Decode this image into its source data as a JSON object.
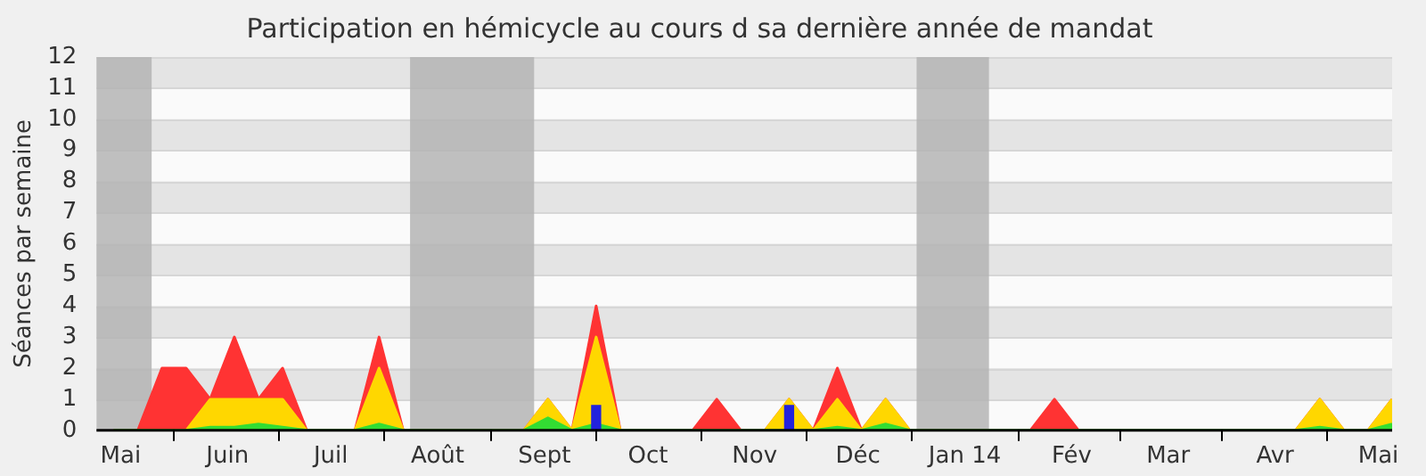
{
  "chart_data": {
    "type": "area",
    "title": "Participation en hémicycle au cours d sa dernière année de mandat",
    "ylabel": "Séances par semaine",
    "x": [
      "2013-04-29",
      "2013-05-06",
      "2013-05-13",
      "2013-05-20",
      "2013-05-27",
      "2013-06-03",
      "2013-06-10",
      "2013-06-17",
      "2013-06-24",
      "2013-07-01",
      "2013-07-08",
      "2013-07-15",
      "2013-07-22",
      "2013-07-29",
      "2013-08-05",
      "2013-08-12",
      "2013-08-19",
      "2013-08-26",
      "2013-09-02",
      "2013-09-09",
      "2013-09-16",
      "2013-09-23",
      "2013-09-30",
      "2013-10-07",
      "2013-10-14",
      "2013-10-21",
      "2013-10-28",
      "2013-11-04",
      "2013-11-11",
      "2013-11-18",
      "2013-11-25",
      "2013-12-02",
      "2013-12-09",
      "2013-12-16",
      "2013-12-23",
      "2013-12-30",
      "2014-01-06",
      "2014-01-13",
      "2014-01-20",
      "2014-01-27",
      "2014-02-03",
      "2014-02-10",
      "2014-02-17",
      "2014-02-24",
      "2014-03-03",
      "2014-03-10",
      "2014-03-17",
      "2014-03-24",
      "2014-03-31",
      "2014-04-07",
      "2014-04-14",
      "2014-04-21",
      "2014-04-28",
      "2014-05-05"
    ],
    "series": [
      {
        "color": "#ff3333",
        "values": [
          0,
          0,
          2,
          2,
          1,
          3,
          1,
          2,
          0,
          0,
          0,
          3,
          0,
          0,
          0,
          0,
          0,
          0,
          1,
          0,
          4,
          0,
          0,
          0,
          0,
          1,
          0,
          0,
          1,
          0,
          2,
          0,
          1,
          0,
          0,
          0,
          0,
          0,
          0,
          1,
          0,
          0,
          0,
          0,
          0,
          0,
          0,
          0,
          0,
          0,
          1,
          0,
          0,
          1
        ]
      },
      {
        "color": "#ffd700",
        "values": [
          0,
          0,
          0,
          0,
          1,
          1,
          1,
          1,
          0,
          0,
          0,
          2,
          0,
          0,
          0,
          0,
          0,
          0,
          1,
          0,
          3,
          0,
          0,
          0,
          0,
          0,
          0,
          0,
          1,
          0,
          1,
          0,
          1,
          0,
          0,
          0,
          0,
          0,
          0,
          0,
          0,
          0,
          0,
          0,
          0,
          0,
          0,
          0,
          0,
          0,
          1,
          0,
          0,
          1
        ]
      },
      {
        "color": "#33dd33",
        "values": [
          0,
          0,
          0,
          0,
          0.1,
          0.1,
          0.2,
          0.1,
          0,
          0,
          0,
          0.2,
          0,
          0,
          0,
          0,
          0,
          0,
          0.4,
          0,
          0.2,
          0,
          0,
          0,
          0,
          0,
          0,
          0,
          0,
          0,
          0.1,
          0,
          0.2,
          0,
          0,
          0,
          0,
          0,
          0,
          0,
          0,
          0,
          0,
          0,
          0,
          0,
          0,
          0,
          0,
          0,
          0.1,
          0,
          0,
          0.2
        ]
      },
      {
        "type": "bar",
        "color": "#2222dd",
        "values": [
          null,
          null,
          null,
          null,
          null,
          null,
          null,
          null,
          null,
          null,
          null,
          null,
          null,
          null,
          null,
          null,
          null,
          null,
          null,
          null,
          0.8,
          null,
          null,
          null,
          null,
          null,
          null,
          null,
          0.8,
          null,
          null,
          null,
          null,
          null,
          null,
          null,
          null,
          null,
          null,
          null,
          null,
          null,
          null,
          null,
          null,
          null,
          null,
          null,
          null,
          null,
          null,
          null,
          null,
          null
        ]
      }
    ],
    "xlim": [
      "2013-04-24",
      "2014-05-05"
    ],
    "xticks": [
      {
        "value": "2013-05-01",
        "label": "Mai"
      },
      {
        "value": "2013-06-01",
        "label": "Juin"
      },
      {
        "value": "2013-07-01",
        "label": "Juil"
      },
      {
        "value": "2013-08-01",
        "label": "Août"
      },
      {
        "value": "2013-09-01",
        "label": "Sept"
      },
      {
        "value": "2013-10-01",
        "label": "Oct"
      },
      {
        "value": "2013-11-01",
        "label": "Nov"
      },
      {
        "value": "2013-12-01",
        "label": "Déc"
      },
      {
        "value": "2014-01-01",
        "label": "Jan 14"
      },
      {
        "value": "2014-02-01",
        "label": "Fév"
      },
      {
        "value": "2014-03-01",
        "label": "Mar"
      },
      {
        "value": "2014-04-01",
        "label": "Avr"
      },
      {
        "value": "2014-05-01",
        "label": "Mai"
      }
    ],
    "ylim": [
      0,
      12
    ],
    "yticks": [
      0,
      1,
      2,
      3,
      4,
      5,
      6,
      7,
      8,
      9,
      10,
      11,
      12
    ],
    "grid": "y",
    "bands": [
      {
        "axis": "x",
        "from": "2013-04-24",
        "to": "2013-05-10",
        "color": "#b4b4b4"
      },
      {
        "axis": "x",
        "from": "2013-07-24",
        "to": "2013-08-29",
        "color": "#b4b4b4"
      },
      {
        "axis": "x",
        "from": "2013-12-18",
        "to": "2014-01-08",
        "color": "#b4b4b4"
      }
    ]
  }
}
